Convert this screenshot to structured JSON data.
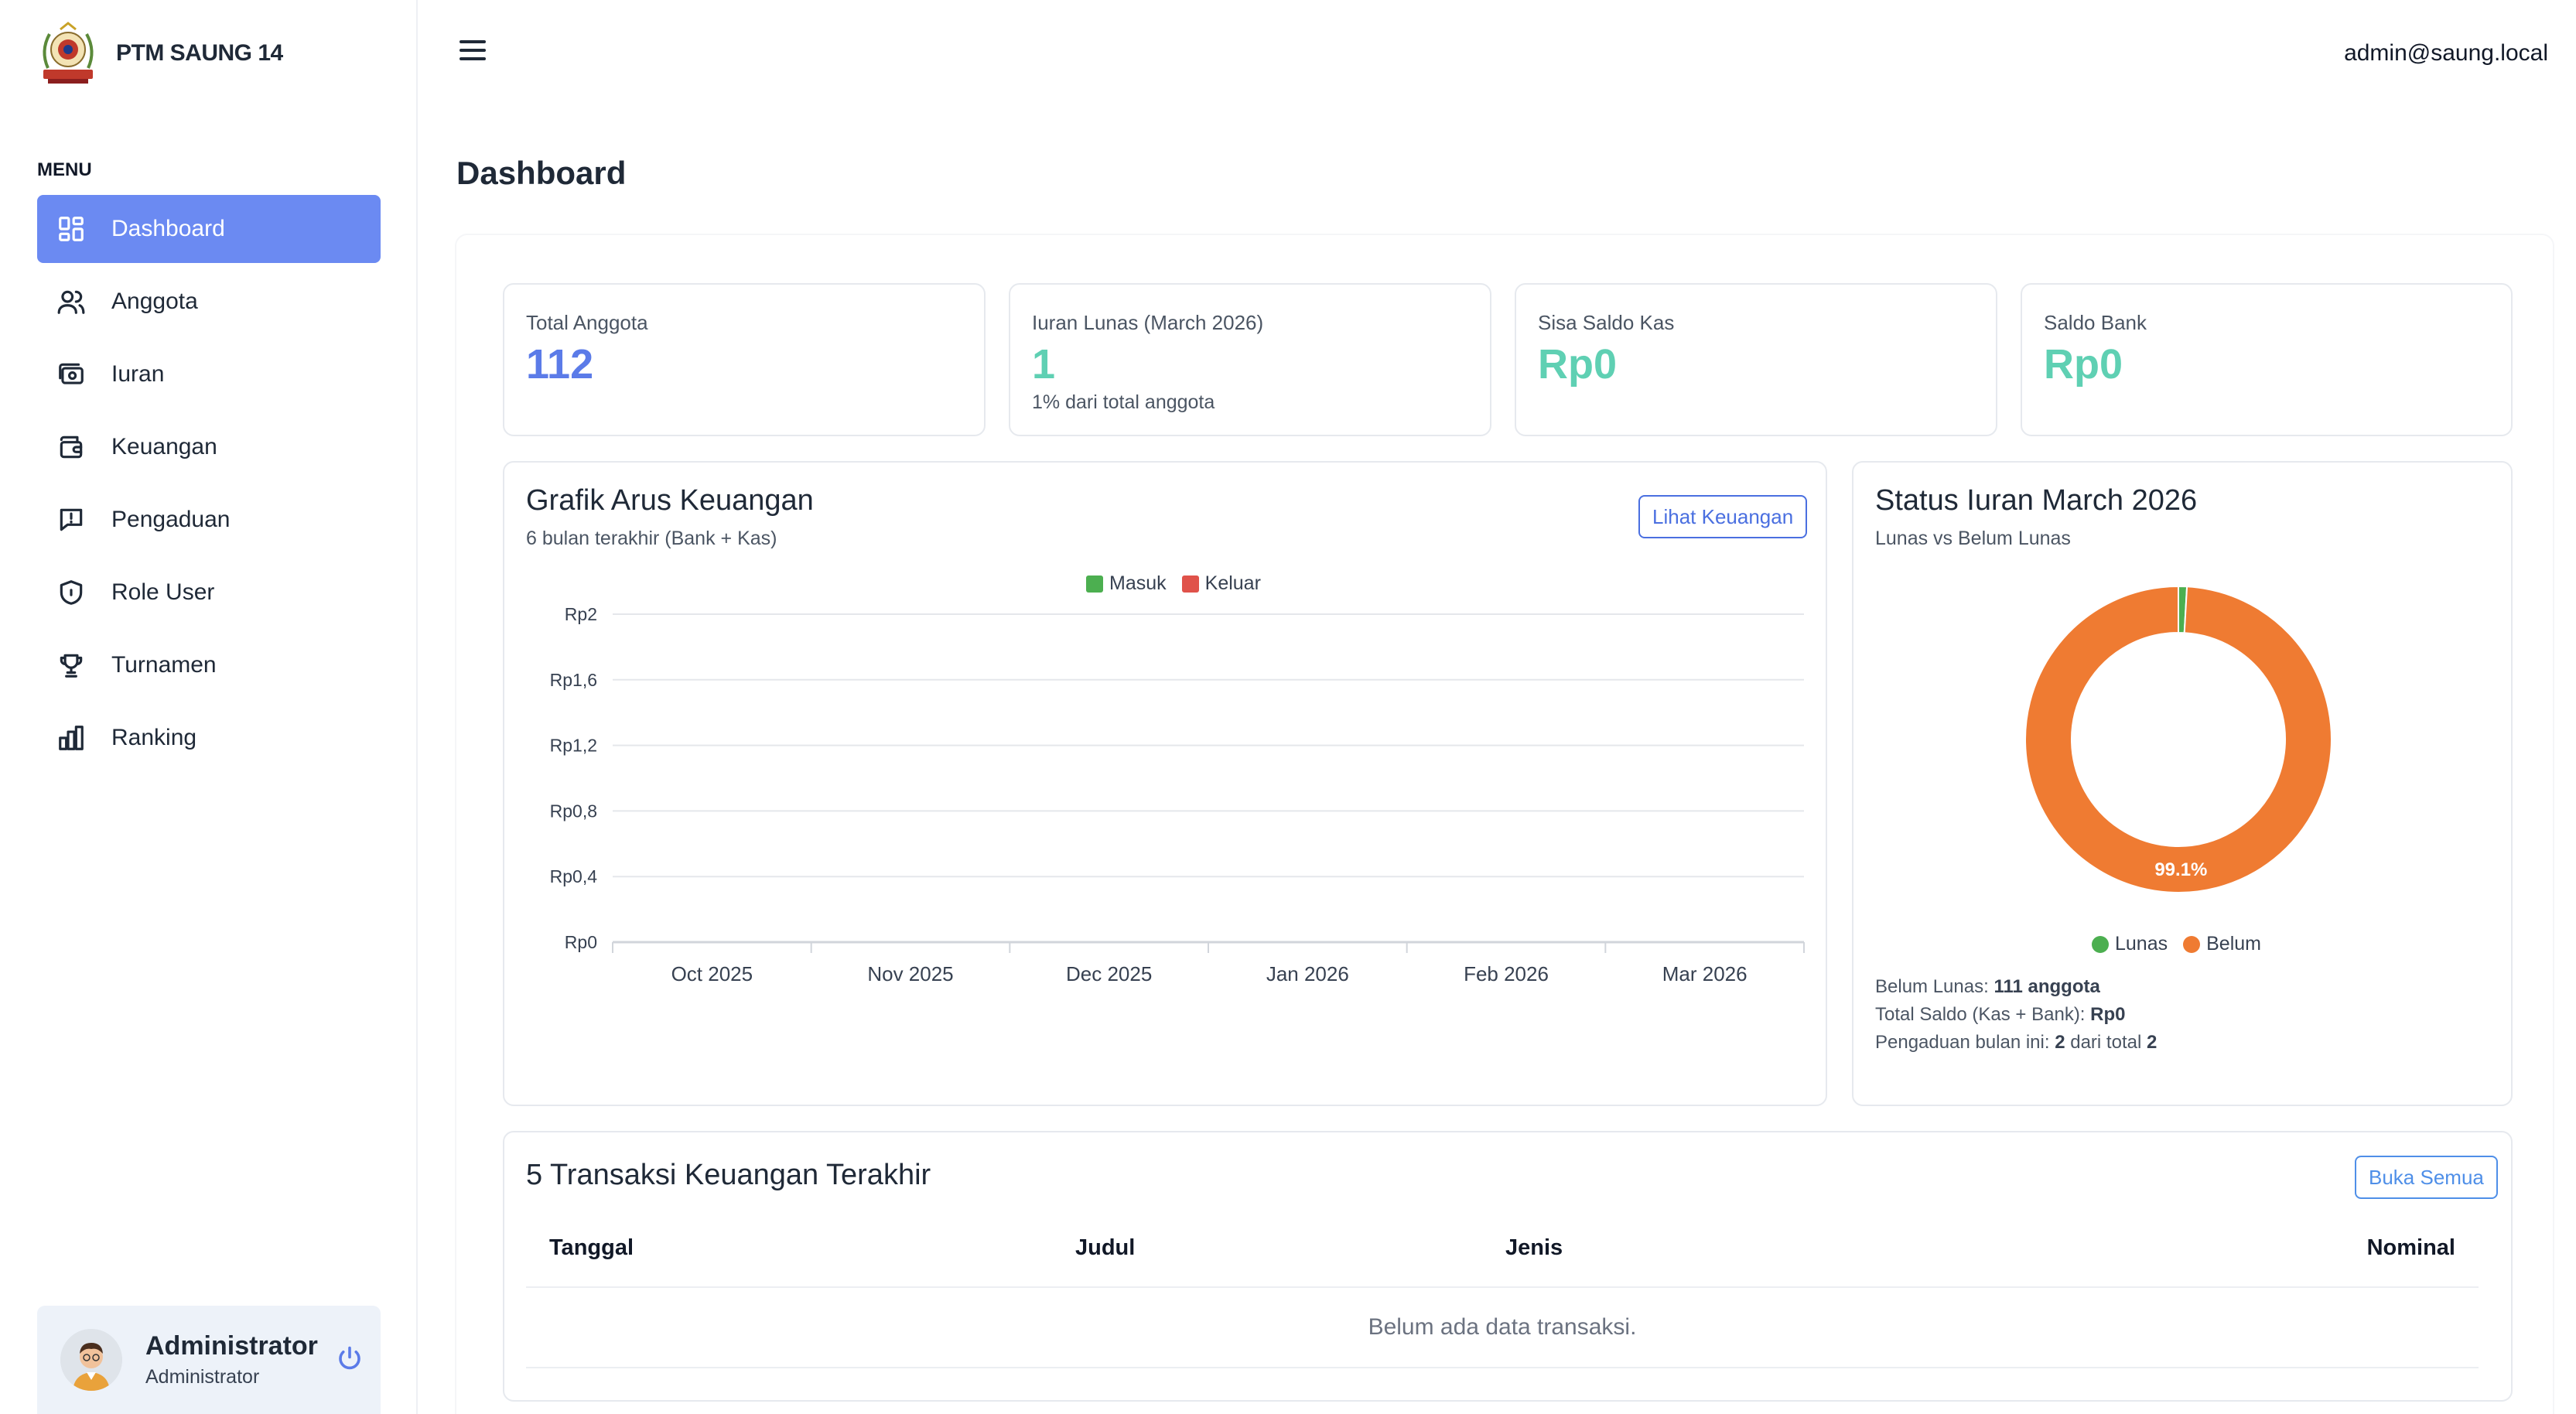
{
  "brand": {
    "name": "PTM SAUNG 14"
  },
  "sidebar": {
    "menu_title": "MENU",
    "items": [
      {
        "label": "Dashboard",
        "icon": "dashboard-icon",
        "active": true
      },
      {
        "label": "Anggota",
        "icon": "users-icon",
        "active": false
      },
      {
        "label": "Iuran",
        "icon": "money-icon",
        "active": false
      },
      {
        "label": "Keuangan",
        "icon": "wallet-icon",
        "active": false
      },
      {
        "label": "Pengaduan",
        "icon": "message-alert-icon",
        "active": false
      },
      {
        "label": "Role User",
        "icon": "shield-icon",
        "active": false
      },
      {
        "label": "Turnamen",
        "icon": "trophy-icon",
        "active": false
      },
      {
        "label": "Ranking",
        "icon": "bar-chart-icon",
        "active": false
      }
    ]
  },
  "user": {
    "name": "Administrator",
    "role": "Administrator"
  },
  "header": {
    "email": "admin@saung.local"
  },
  "page": {
    "title": "Dashboard"
  },
  "stats": [
    {
      "label": "Total Anggota",
      "value": "112",
      "sub": "",
      "color": "#5b7be8"
    },
    {
      "label": "Iuran Lunas (March 2026)",
      "value": "1",
      "sub": "1% dari total anggota",
      "color": "#5fd0b3"
    },
    {
      "label": "Sisa Saldo Kas",
      "value": "Rp0",
      "sub": "",
      "color": "#5fd0b3"
    },
    {
      "label": "Saldo Bank",
      "value": "Rp0",
      "sub": "",
      "color": "#5fd0b3"
    }
  ],
  "cashflow": {
    "title": "Grafik Arus Keuangan",
    "subtitle": "6 bulan terakhir (Bank + Kas)",
    "button": "Lihat Keuangan",
    "chart_data": {
      "type": "bar",
      "categories": [
        "Oct 2025",
        "Nov 2025",
        "Dec 2025",
        "Jan 2026",
        "Feb 2026",
        "Mar 2026"
      ],
      "series": [
        {
          "name": "Masuk",
          "values": [
            0,
            0,
            0,
            0,
            0,
            0
          ],
          "color": "#4caf50"
        },
        {
          "name": "Keluar",
          "values": [
            0,
            0,
            0,
            0,
            0,
            0
          ],
          "color": "#e0524a"
        }
      ],
      "y_ticks": [
        "Rp2",
        "Rp1,6",
        "Rp1,2",
        "Rp0,8",
        "Rp0,4",
        "Rp0"
      ],
      "ylim": [
        0,
        2
      ],
      "grid": true,
      "legend_position": "top"
    }
  },
  "status": {
    "title": "Status Iuran March 2026",
    "subtitle": "Lunas vs Belum Lunas",
    "chart_data": {
      "type": "pie",
      "labels": [
        "Lunas",
        "Belum"
      ],
      "values": [
        1,
        111
      ],
      "colors": [
        "#4caf50",
        "#ef7b32"
      ],
      "data_label": "99.1%",
      "legend_position": "bottom"
    },
    "belum_label": "Belum Lunas:",
    "belum_value": "111 anggota",
    "saldo_label": "Total Saldo (Kas + Bank):",
    "saldo_value": "Rp0",
    "pengaduan_label": "Pengaduan bulan ini:",
    "pengaduan_count": "2",
    "pengaduan_mid": "dari total",
    "pengaduan_total": "2"
  },
  "transactions": {
    "title": "5 Transaksi Keuangan Terakhir",
    "button": "Buka Semua",
    "columns": [
      "Tanggal",
      "Judul",
      "Jenis",
      "Nominal"
    ],
    "empty": "Belum ada data transaksi."
  }
}
